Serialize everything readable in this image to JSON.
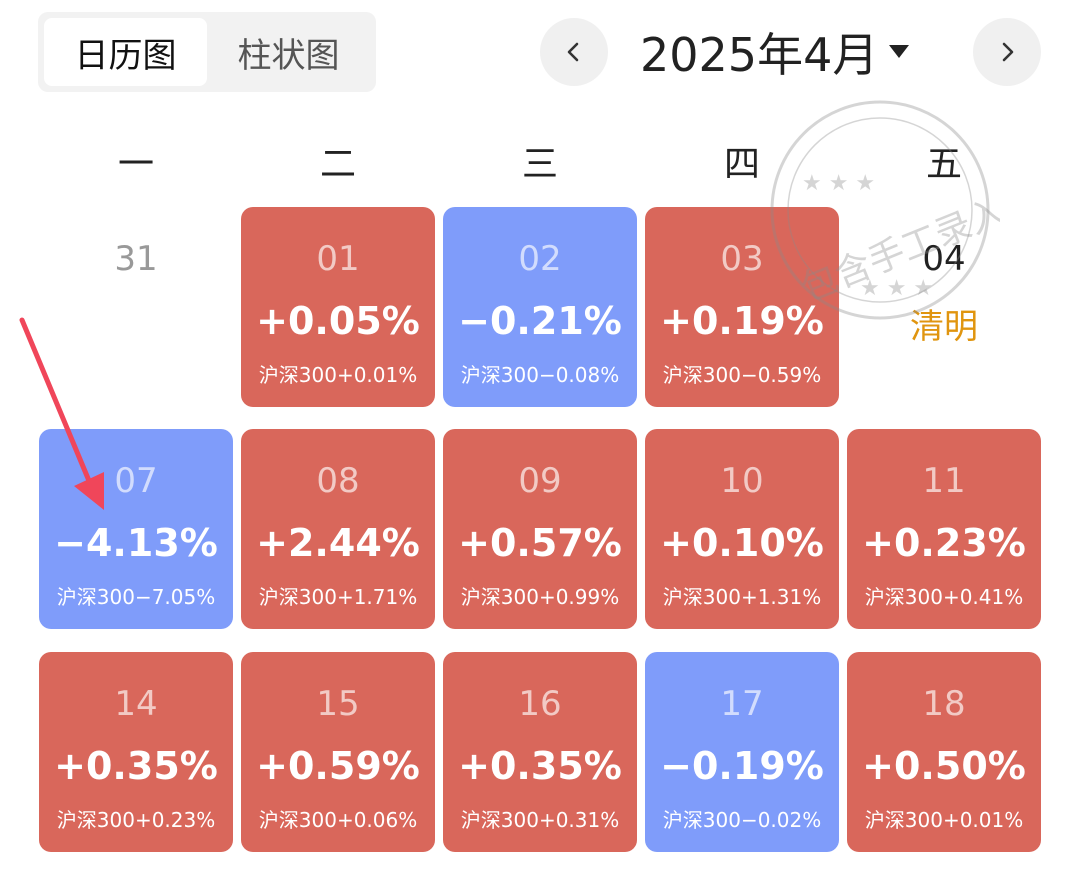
{
  "tabs": [
    {
      "label": "日历图",
      "active": true
    },
    {
      "label": "柱状图",
      "active": false
    }
  ],
  "header": {
    "month_label": "2025年4月",
    "prev_icon": "chevron-left-icon",
    "next_icon": "chevron-right-icon",
    "dropdown_icon": "caret-down-icon"
  },
  "weekdays": [
    "一",
    "二",
    "三",
    "四",
    "五"
  ],
  "colors": {
    "up": "#d9675b",
    "down": "#7f9cfa",
    "holiday": "#e0950f",
    "annotation_arrow": "#f0465a"
  },
  "stamp": {
    "text": "包含手工录入"
  },
  "calendar": {
    "weeks": [
      [
        {
          "day": "31",
          "type": "empty"
        },
        {
          "day": "01",
          "type": "up",
          "pct": "+0.05%",
          "index": "沪深300+0.01%"
        },
        {
          "day": "02",
          "type": "down",
          "pct": "−0.21%",
          "index": "沪深300−0.08%"
        },
        {
          "day": "03",
          "type": "up",
          "pct": "+0.19%",
          "index": "沪深300−0.59%"
        },
        {
          "day": "04",
          "type": "holiday",
          "holiday": "清明"
        }
      ],
      [
        {
          "day": "07",
          "type": "down",
          "pct": "−4.13%",
          "index": "沪深300−7.05%"
        },
        {
          "day": "08",
          "type": "up",
          "pct": "+2.44%",
          "index": "沪深300+1.71%"
        },
        {
          "day": "09",
          "type": "up",
          "pct": "+0.57%",
          "index": "沪深300+0.99%"
        },
        {
          "day": "10",
          "type": "up",
          "pct": "+0.10%",
          "index": "沪深300+1.31%"
        },
        {
          "day": "11",
          "type": "up",
          "pct": "+0.23%",
          "index": "沪深300+0.41%"
        }
      ],
      [
        {
          "day": "14",
          "type": "up",
          "pct": "+0.35%",
          "index": "沪深300+0.23%"
        },
        {
          "day": "15",
          "type": "up",
          "pct": "+0.59%",
          "index": "沪深300+0.06%"
        },
        {
          "day": "16",
          "type": "up",
          "pct": "+0.35%",
          "index": "沪深300+0.31%"
        },
        {
          "day": "17",
          "type": "down",
          "pct": "−0.19%",
          "index": "沪深300−0.02%"
        },
        {
          "day": "18",
          "type": "up",
          "pct": "+0.50%",
          "index": "沪深300+0.01%"
        }
      ]
    ]
  }
}
